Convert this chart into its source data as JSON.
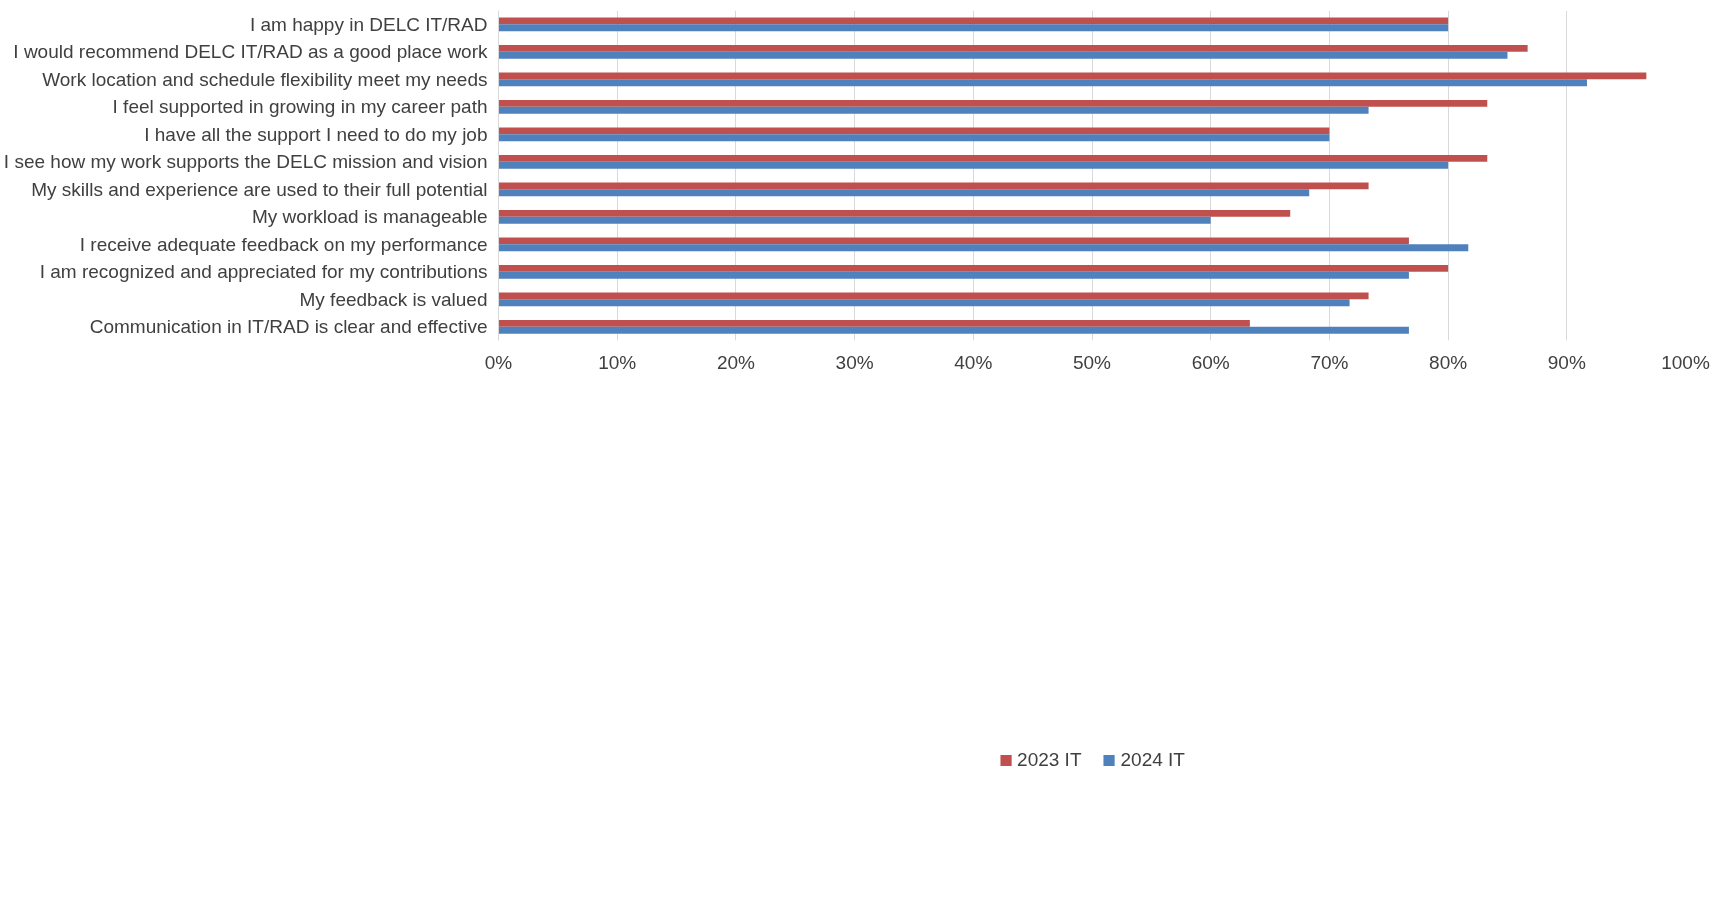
{
  "chart_data": {
    "type": "bar",
    "orientation": "horizontal",
    "categories": [
      "I am happy in DELC IT/RAD",
      "I would recommend DELC IT/RAD as a good place work",
      "Work location and schedule flexibility meet my needs",
      "I feel supported in growing in my career path",
      "I have all the support I need to do my job",
      "I see how my work supports the DELC mission and vision",
      "My skills and experience are used to their full potential",
      "My workload is manageable",
      "I receive adequate feedback on my performance",
      "I am recognized and appreciated for my contributions",
      "My feedback is valued",
      "Communication in IT/RAD is clear and effective"
    ],
    "series": [
      {
        "name": "2023 IT",
        "color": "#c0504d",
        "values": [
          80,
          86.7,
          96.7,
          83.3,
          70,
          83.3,
          73.3,
          66.7,
          76.7,
          80,
          73.3,
          63.3
        ]
      },
      {
        "name": "2024 IT",
        "color": "#4f81bd",
        "values": [
          80,
          85,
          91.7,
          73.3,
          70,
          80,
          68.3,
          60,
          81.7,
          76.7,
          71.7,
          76.7
        ]
      }
    ],
    "xlim": [
      0,
      100
    ],
    "xticks": [
      {
        "value": 0,
        "label": "0%"
      },
      {
        "value": 10,
        "label": "10%"
      },
      {
        "value": 20,
        "label": "20%"
      },
      {
        "value": 30,
        "label": "30%"
      },
      {
        "value": 40,
        "label": "40%"
      },
      {
        "value": 50,
        "label": "50%"
      },
      {
        "value": 60,
        "label": "60%"
      },
      {
        "value": 70,
        "label": "70%"
      },
      {
        "value": 80,
        "label": "80%"
      },
      {
        "value": 90,
        "label": "90%"
      },
      {
        "value": 100,
        "label": "100%"
      }
    ],
    "grid": "x",
    "legend": "bottom"
  }
}
